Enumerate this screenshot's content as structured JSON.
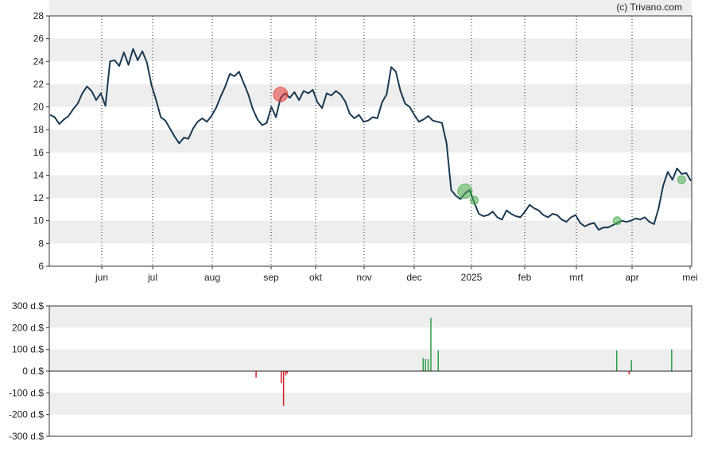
{
  "credit": "(c) Trivano.com",
  "colors": {
    "line": "#1a3a52",
    "band": "#eeeeee",
    "buy": "#2e9e4a",
    "sell": "#d9202a",
    "buy_marker": "#4caf50",
    "sell_marker": "#e53935"
  },
  "chart_data": [
    {
      "type": "line",
      "grid": true,
      "ylim": [
        6,
        28
      ],
      "yticks": [
        "6",
        "8",
        "10",
        "12",
        "14",
        "16",
        "18",
        "20",
        "22",
        "24",
        "26",
        "28"
      ],
      "xticks": [
        "jun",
        "jul",
        "aug",
        "sep",
        "okt",
        "nov",
        "dec",
        "2025",
        "feb",
        "mrt",
        "apr",
        "mei"
      ],
      "series": [
        {
          "values": [
            19.3,
            19.1,
            18.5,
            18.9,
            19.2,
            19.8,
            20.3,
            21.2,
            21.8,
            21.4,
            20.6,
            21.2,
            20.1,
            24.0,
            24.1,
            23.6,
            24.8,
            23.7,
            25.1,
            24.1,
            24.9,
            23.9,
            21.9,
            20.6,
            19.1,
            18.8,
            18.1,
            17.4,
            16.8,
            17.3,
            17.2,
            18.1,
            18.7,
            19.0,
            18.7,
            19.2,
            19.9,
            20.9,
            21.8,
            22.9,
            22.7,
            23.1,
            22.1,
            21.1,
            19.8,
            18.9,
            18.4,
            18.6,
            20.0,
            19.1,
            20.8,
            21.2,
            20.8,
            21.3,
            20.6,
            21.4,
            21.2,
            21.5,
            20.4,
            19.9,
            21.2,
            21.0,
            21.4,
            21.1,
            20.5,
            19.4,
            19.0,
            19.3,
            18.7,
            18.8,
            19.1,
            19.0,
            20.4,
            21.1,
            23.5,
            23.1,
            21.4,
            20.3,
            20.0,
            19.3,
            18.7,
            18.9,
            19.2,
            18.8,
            18.7,
            18.6,
            16.8,
            12.7,
            12.2,
            11.9,
            12.4,
            12.7,
            11.6,
            10.6,
            10.4,
            10.5,
            10.8,
            10.3,
            10.1,
            10.9,
            10.6,
            10.4,
            10.3,
            10.8,
            11.4,
            11.1,
            10.9,
            10.5,
            10.3,
            10.6,
            10.5,
            10.1,
            9.9,
            10.3,
            10.5,
            9.8,
            9.5,
            9.7,
            9.8,
            9.2,
            9.4,
            9.4,
            9.6,
            9.8,
            10.0,
            9.9,
            10.0,
            10.2,
            10.1,
            10.3,
            9.9,
            9.7,
            11.1,
            13.1,
            14.3,
            13.6,
            14.6,
            14.1,
            14.2,
            13.5
          ]
        }
      ],
      "markers": [
        {
          "index": 50,
          "value": 21.1,
          "kind": "sell",
          "size": "large"
        },
        {
          "index": 90,
          "value": 12.6,
          "kind": "buy",
          "size": "large"
        },
        {
          "index": 92,
          "value": 11.8,
          "kind": "buy",
          "size": "small"
        },
        {
          "index": 123,
          "value": 10.0,
          "kind": "buy",
          "size": "small"
        },
        {
          "index": 137,
          "value": 13.6,
          "kind": "buy",
          "size": "small"
        }
      ]
    },
    {
      "type": "bar",
      "grid": true,
      "ylim": [
        -300,
        300
      ],
      "yticks": [
        "-300 d.$",
        "-200 d.$",
        "-100 d.$",
        "0 d.$",
        "100 d.$",
        "200 d.$",
        "300 d.$"
      ],
      "x_range": [
        0,
        140
      ],
      "values": [
        {
          "x": 45.0,
          "value": -30
        },
        {
          "x": 50.5,
          "value": -55
        },
        {
          "x": 51.0,
          "value": -160
        },
        {
          "x": 51.5,
          "value": -20
        },
        {
          "x": 51.8,
          "value": -10
        },
        {
          "x": 81.5,
          "value": 60
        },
        {
          "x": 82.0,
          "value": 55
        },
        {
          "x": 82.6,
          "value": 55
        },
        {
          "x": 83.2,
          "value": 245
        },
        {
          "x": 84.8,
          "value": 95
        },
        {
          "x": 123.8,
          "value": 95
        },
        {
          "x": 126.5,
          "value": -15
        },
        {
          "x": 127.0,
          "value": 50
        },
        {
          "x": 135.8,
          "value": 100
        }
      ]
    }
  ]
}
